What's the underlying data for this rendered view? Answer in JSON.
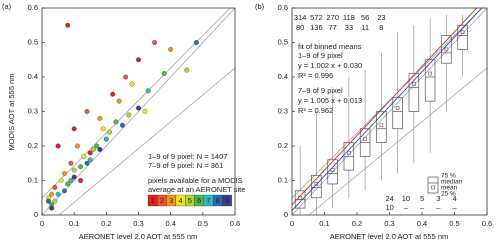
{
  "chart_data": [
    {
      "type": "scatter",
      "panel_label": "(a)",
      "x_label": "AERONET level 2.0 AOT at 555 nm",
      "y_label": "MODIS AOT at 555 nm",
      "xlim": [
        0,
        0.6
      ],
      "ylim": [
        0,
        0.6
      ],
      "xticks": [
        0,
        0.1,
        0.2,
        0.3,
        0.4,
        0.5,
        0.6
      ],
      "yticks": [
        0,
        0.1,
        0.2,
        0.3,
        0.4,
        0.5,
        0.6
      ],
      "annotations": [
        {
          "text": "1–9 of 9 pixel: N = 1407",
          "color": "#d62728"
        },
        {
          "text": "7–9 of 9 pixel: N = 361",
          "color": "#2b4fa8"
        },
        {
          "text": "pixels available for a MODIS",
          "color": "#222222"
        },
        {
          "text": "average at an AERONET site",
          "color": "#222222"
        }
      ],
      "series": [
        {
          "name": "1",
          "color": "#e0201b",
          "x": [
            0.05,
            0.1,
            0.15,
            0.22,
            0.3,
            0.12,
            0.08
          ],
          "y": [
            0.2,
            0.25,
            0.18,
            0.35,
            0.45,
            0.1,
            0.55
          ]
        },
        {
          "name": "2",
          "color": "#f0562a",
          "x": [
            0.04,
            0.09,
            0.14,
            0.2,
            0.26,
            0.35
          ],
          "y": [
            0.08,
            0.15,
            0.3,
            0.22,
            0.4,
            0.5
          ]
        },
        {
          "name": "3",
          "color": "#f7941d",
          "x": [
            0.03,
            0.07,
            0.11,
            0.18,
            0.24,
            0.4
          ],
          "y": [
            0.06,
            0.12,
            0.2,
            0.28,
            0.33,
            0.48
          ]
        },
        {
          "name": "4",
          "color": "#f5e11a",
          "x": [
            0.02,
            0.06,
            0.13,
            0.19,
            0.28,
            0.32
          ],
          "y": [
            0.05,
            0.1,
            0.17,
            0.25,
            0.38,
            0.3
          ]
        },
        {
          "name": "5",
          "color": "#b5d334",
          "x": [
            0.04,
            0.1,
            0.16,
            0.21,
            0.27,
            0.45
          ],
          "y": [
            0.04,
            0.13,
            0.19,
            0.24,
            0.29,
            0.42
          ]
        },
        {
          "name": "6",
          "color": "#4cb848",
          "x": [
            0.03,
            0.08,
            0.12,
            0.17,
            0.23,
            0.38
          ],
          "y": [
            0.03,
            0.09,
            0.14,
            0.2,
            0.27,
            0.41
          ]
        },
        {
          "name": "7",
          "color": "#2bb7c9",
          "x": [
            0.05,
            0.09,
            0.15,
            0.2,
            0.33
          ],
          "y": [
            0.06,
            0.1,
            0.16,
            0.22,
            0.36
          ]
        },
        {
          "name": "8",
          "color": "#2a6cb4",
          "x": [
            0.02,
            0.07,
            0.14,
            0.25,
            0.48
          ],
          "y": [
            0.04,
            0.07,
            0.15,
            0.26,
            0.5
          ]
        },
        {
          "name": "9",
          "color": "#3b3b9a",
          "x": [
            0.03,
            0.1,
            0.18,
            0.3
          ],
          "y": [
            0.02,
            0.11,
            0.19,
            0.31
          ]
        }
      ]
    },
    {
      "type": "box",
      "panel_label": "(b)",
      "x_label": "AERONET level 2.0 AOT at 555 nm",
      "xlim": [
        0,
        0.6
      ],
      "ylim": [
        0,
        0.6
      ],
      "xticks": [
        0,
        0.1,
        0.2,
        0.3,
        0.4,
        0.5,
        0.6
      ],
      "yticks": [
        0,
        0.1,
        0.2,
        0.3,
        0.4,
        0.5,
        0.6
      ],
      "boxes": [
        {
          "x": 0.025,
          "low": 0.0,
          "q25": 0.02,
          "median": 0.045,
          "mean": 0.05,
          "q75": 0.07,
          "high": 0.2
        },
        {
          "x": 0.075,
          "low": 0.0,
          "q25": 0.05,
          "median": 0.08,
          "mean": 0.09,
          "q75": 0.115,
          "high": 0.3
        },
        {
          "x": 0.125,
          "low": 0.02,
          "q25": 0.09,
          "median": 0.12,
          "mean": 0.13,
          "q75": 0.16,
          "high": 0.36
        },
        {
          "x": 0.175,
          "low": 0.05,
          "q25": 0.13,
          "median": 0.17,
          "mean": 0.18,
          "q75": 0.21,
          "high": 0.4
        },
        {
          "x": 0.225,
          "low": 0.07,
          "q25": 0.17,
          "median": 0.21,
          "mean": 0.22,
          "q75": 0.25,
          "high": 0.42
        },
        {
          "x": 0.275,
          "low": 0.1,
          "q25": 0.21,
          "median": 0.25,
          "mean": 0.26,
          "q75": 0.3,
          "high": 0.47
        },
        {
          "x": 0.325,
          "low": 0.12,
          "q25": 0.25,
          "median": 0.3,
          "mean": 0.31,
          "q75": 0.34,
          "high": 0.53
        },
        {
          "x": 0.375,
          "low": 0.15,
          "q25": 0.3,
          "median": 0.37,
          "mean": 0.38,
          "q75": 0.41,
          "high": 0.55
        },
        {
          "x": 0.425,
          "low": 0.18,
          "q25": 0.33,
          "median": 0.4,
          "mean": 0.41,
          "q75": 0.45,
          "high": 0.57
        },
        {
          "x": 0.475,
          "low": 0.3,
          "q25": 0.44,
          "median": 0.47,
          "mean": 0.48,
          "q75": 0.52,
          "high": 0.58
        },
        {
          "x": 0.525,
          "low": 0.4,
          "q25": 0.48,
          "median": 0.52,
          "mean": 0.53,
          "q75": 0.55,
          "high": 0.58
        }
      ],
      "counts_top": [
        {
          "color": "#d62728",
          "values": [
            314,
            572,
            270,
            118,
            56,
            23
          ]
        },
        {
          "color": "#2b4fa8",
          "values": [
            80,
            136,
            77,
            33,
            11,
            8
          ]
        }
      ],
      "counts_bottom": [
        {
          "color": "#d62728",
          "values": [
            24,
            10,
            5,
            3,
            4
          ]
        },
        {
          "color": "#2b4fa8",
          "values": [
            10,
            "–",
            "–",
            "–",
            "–"
          ]
        }
      ],
      "fit_title": "fit of binned means",
      "fits": [
        {
          "name": "1–9 of 9 pixel",
          "equation": "y = 1.002 x + 0.030",
          "r2": "R² = 0.996",
          "slope": 1.002,
          "intercept": 0.03,
          "color": "#d62728"
        },
        {
          "name": "7–9 of 9 pixel",
          "equation": "y = 1.005 x + 0.013",
          "r2": "R² = 0.962",
          "slope": 1.005,
          "intercept": 0.013,
          "color": "#2b4fa8"
        }
      ],
      "box_legend": [
        "75 %",
        "median",
        "mean",
        "25 %"
      ]
    }
  ]
}
